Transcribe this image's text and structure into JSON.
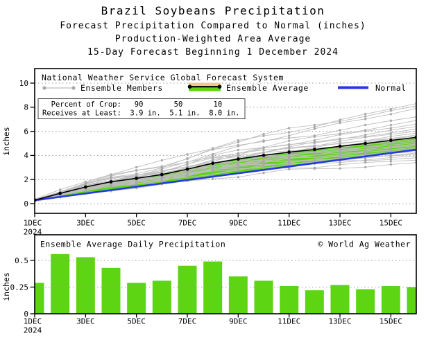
{
  "title_block": {
    "line1": "Brazil Soybeans Precipitation",
    "line2": "Forecast Precipitation Compared to Normal (inches)",
    "line3": "Production-Weighted Area Average",
    "line4": "15-Day Forecast Beginning 1 December 2024"
  },
  "colors": {
    "bar_green": "#5dd513",
    "band_green": "#5dd513",
    "band_tan": "#edc98d",
    "normal_blue": "#2638e6",
    "member_line": "#bdbdbd",
    "member_dot": "#a9a9a9",
    "average_black": "#000000",
    "grid_gray": "#999999"
  },
  "chart_data": [
    {
      "type": "line",
      "legend_title": "National Weather Service Global Forecast System",
      "legend": [
        {
          "label": "Ensemble Members"
        },
        {
          "label": "Ensemble Average"
        },
        {
          "label": "Normal"
        }
      ],
      "stats_box": {
        "row1": "  Percent of Crop:   90       50       10",
        "row2": "Receives at Least:  3.9 in.  5.1 in.  8.0 in.",
        "percent_of_crop": [
          "90",
          "50",
          "10"
        ],
        "receives_at_least": [
          "3.9 in.",
          "5.1 in.",
          "8.0 in."
        ]
      },
      "ylabel": "inches",
      "ylim": [
        -0.8,
        11.2
      ],
      "yticks": [
        0,
        2,
        4,
        6,
        8,
        10
      ],
      "x_days": [
        1,
        2,
        3,
        4,
        5,
        6,
        7,
        8,
        9,
        10,
        11,
        12,
        13,
        14,
        15,
        16
      ],
      "xtick_days": [
        1,
        3,
        5,
        7,
        9,
        11,
        13,
        15
      ],
      "xtick_labels": [
        "1DEC",
        "3DEC",
        "5DEC",
        "7DEC",
        "9DEC",
        "11DEC",
        "13DEC",
        "15DEC"
      ],
      "year_label": "2024",
      "series": [
        {
          "name": "Ensemble Average",
          "values": [
            0.29,
            0.85,
            1.38,
            1.81,
            2.1,
            2.41,
            2.86,
            3.35,
            3.7,
            4.01,
            4.27,
            4.49,
            4.76,
            4.99,
            5.25,
            5.5
          ]
        },
        {
          "name": "Normal",
          "values": [
            0.28,
            0.56,
            0.84,
            1.12,
            1.4,
            1.68,
            1.96,
            2.24,
            2.52,
            2.8,
            3.08,
            3.36,
            3.64,
            3.92,
            4.2,
            4.48
          ]
        },
        {
          "name": "Ensemble Members",
          "member_final_values": [
            3.4,
            3.6,
            3.8,
            3.95,
            4.1,
            4.2,
            4.3,
            4.4,
            4.5,
            4.6,
            4.7,
            4.8,
            4.9,
            4.95,
            5.05,
            5.1,
            5.2,
            5.3,
            5.45,
            5.6,
            5.7,
            5.85,
            6.0,
            6.2,
            6.4,
            6.6,
            6.9,
            7.2,
            7.9,
            8.1,
            8.3
          ]
        }
      ]
    },
    {
      "type": "bar",
      "title": "Ensemble Average Daily Precipitation",
      "watermark": "© World Ag Weather",
      "ylabel": "inches",
      "ylim": [
        0,
        0.74
      ],
      "yticks": [
        0,
        0.25,
        0.5
      ],
      "ytick_labels": [
        "0",
        "0.25",
        "0.5"
      ],
      "x_days": [
        1,
        2,
        3,
        4,
        5,
        6,
        7,
        8,
        9,
        10,
        11,
        12,
        13,
        14,
        15,
        16
      ],
      "xtick_days": [
        1,
        3,
        5,
        7,
        9,
        11,
        13,
        15
      ],
      "xtick_labels": [
        "1DEC",
        "3DEC",
        "5DEC",
        "7DEC",
        "9DEC",
        "11DEC",
        "13DEC",
        "15DEC"
      ],
      "year_label": "2024",
      "values": [
        0.29,
        0.56,
        0.53,
        0.43,
        0.29,
        0.31,
        0.45,
        0.49,
        0.35,
        0.31,
        0.26,
        0.22,
        0.27,
        0.23,
        0.26,
        0.25
      ]
    }
  ]
}
